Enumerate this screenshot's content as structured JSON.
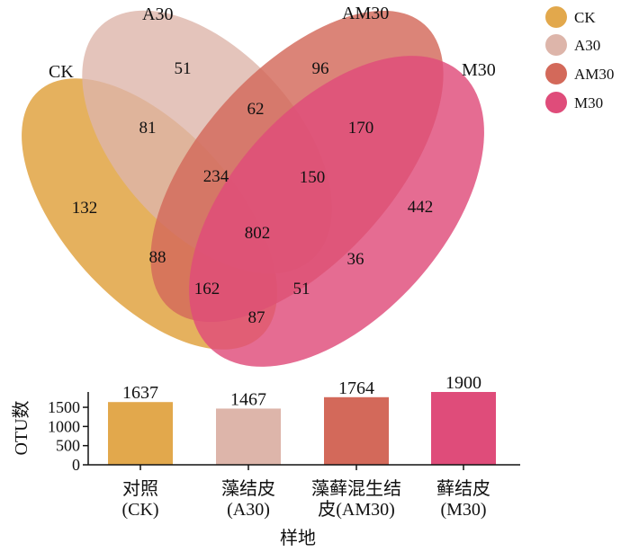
{
  "colors": {
    "CK": "#E2A84C",
    "A30": "#DDB5AA",
    "AM30": "#D3695A",
    "M30": "#DF4C7A",
    "axis": "#111111"
  },
  "venn": {
    "sets": [
      {
        "key": "CK",
        "label": "CK"
      },
      {
        "key": "A30",
        "label": "A30"
      },
      {
        "key": "AM30",
        "label": "AM30"
      },
      {
        "key": "M30",
        "label": "M30"
      }
    ],
    "regions": [
      {
        "sets": [
          "A30"
        ],
        "value": "51"
      },
      {
        "sets": [
          "AM30"
        ],
        "value": "96"
      },
      {
        "sets": [
          "CK",
          "A30"
        ],
        "value": "81"
      },
      {
        "sets": [
          "A30",
          "AM30"
        ],
        "value": "62"
      },
      {
        "sets": [
          "AM30",
          "M30"
        ],
        "value": "170"
      },
      {
        "sets": [
          "CK",
          "A30",
          "AM30"
        ],
        "value": "234"
      },
      {
        "sets": [
          "A30",
          "AM30",
          "M30"
        ],
        "value": "150"
      },
      {
        "sets": [
          "CK"
        ],
        "value": "132"
      },
      {
        "sets": [
          "M30"
        ],
        "value": "442"
      },
      {
        "sets": [
          "CK",
          "A30",
          "AM30",
          "M30"
        ],
        "value": "802"
      },
      {
        "sets": [
          "CK",
          "AM30"
        ],
        "value": "88"
      },
      {
        "sets": [
          "A30",
          "M30"
        ],
        "value": "36"
      },
      {
        "sets": [
          "CK",
          "AM30",
          "M30"
        ],
        "value": "162"
      },
      {
        "sets": [
          "CK",
          "A30",
          "M30"
        ],
        "value": "51"
      },
      {
        "sets": [
          "CK",
          "M30"
        ],
        "value": "87"
      }
    ]
  },
  "legend": {
    "items": [
      {
        "label": "CK",
        "key": "CK"
      },
      {
        "label": "A30",
        "key": "A30"
      },
      {
        "label": "AM30",
        "key": "AM30"
      },
      {
        "label": "M30",
        "key": "M30"
      }
    ]
  },
  "chart_data": {
    "type": "bar",
    "categories": [
      "对照(CK)",
      "藻结皮(A30)",
      "藻藓混生结皮(AM30)",
      "藓结皮(M30)"
    ],
    "category_lines": [
      [
        "对照",
        "(CK)"
      ],
      [
        "藻结皮",
        "(A30)"
      ],
      [
        "藻藓混生结",
        "皮(AM30)"
      ],
      [
        "藓结皮",
        "(M30)"
      ]
    ],
    "values": [
      1637,
      1467,
      1764,
      1900
    ],
    "value_labels": [
      "1637",
      "1467",
      "1764",
      "1900"
    ],
    "bar_colors": [
      "#E2A84C",
      "#DDB5AA",
      "#D3695A",
      "#DF4C7A"
    ],
    "ylabel": "OTU数",
    "xlabel": "样地",
    "ylim": [
      0,
      1900
    ],
    "yticks": [
      0,
      500,
      1000,
      1500
    ],
    "ytick_labels": [
      "0",
      "500",
      "1000",
      "1500"
    ]
  }
}
